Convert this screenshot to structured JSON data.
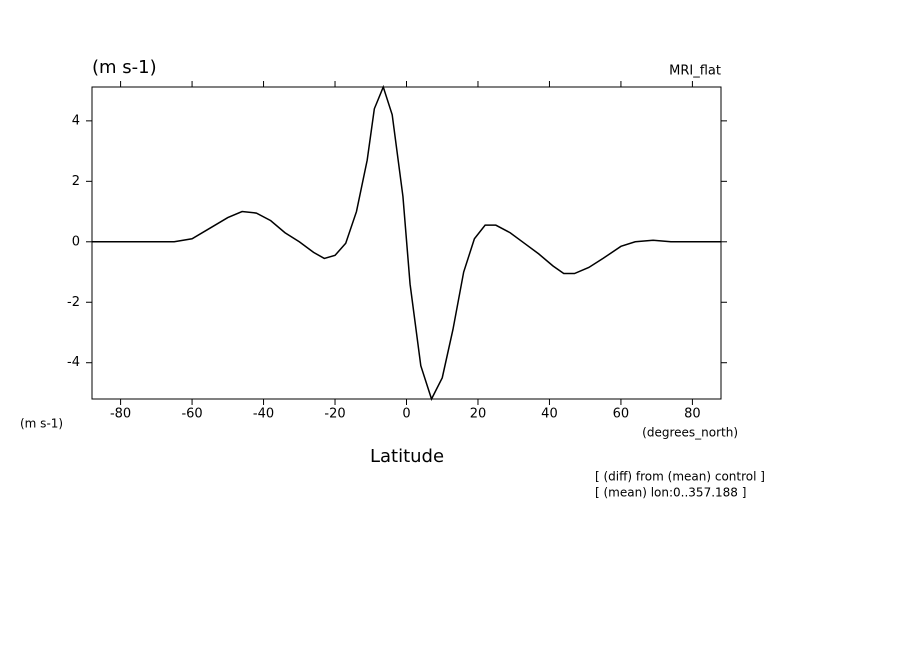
{
  "chart_data": {
    "type": "line",
    "title": "(m s-1)",
    "model": "MRI_flat",
    "y_unit": "(m s-1)",
    "x_unit": "(degrees_north)",
    "x_label": "Latitude",
    "notes": [
      "[ (diff) from (mean) control ]",
      "[ (mean) lon:0..357.188 ]"
    ],
    "color": "#000000",
    "x": [
      -88,
      -75,
      -65,
      -60,
      -55,
      -50,
      -46,
      -42,
      -38,
      -34,
      -30,
      -26,
      -23,
      -20,
      -17,
      -14,
      -11,
      -9,
      -6.5,
      -4,
      -1,
      1,
      4,
      7,
      10,
      13,
      16,
      19,
      22,
      25,
      29,
      33,
      37,
      41,
      44,
      47,
      51,
      55,
      60,
      64,
      69,
      74,
      88
    ],
    "values": [
      0,
      0,
      0,
      0.1,
      0.45,
      0.8,
      1.0,
      0.95,
      0.7,
      0.3,
      0,
      -0.35,
      -0.55,
      -0.45,
      -0.05,
      1.0,
      2.7,
      4.4,
      5.12,
      4.2,
      1.5,
      -1.4,
      -4.1,
      -5.2,
      -4.5,
      -2.9,
      -1.0,
      0.1,
      0.55,
      0.55,
      0.3,
      -0.05,
      -0.4,
      -0.8,
      -1.05,
      -1.05,
      -0.85,
      -0.55,
      -0.15,
      0,
      0.05,
      0,
      0
    ],
    "xlim": [
      -88,
      88
    ],
    "ylim": [
      -5.2,
      5.12
    ],
    "xticks": [
      -80,
      -60,
      -40,
      -20,
      0,
      20,
      40,
      60,
      80
    ],
    "yticks": [
      -4,
      -2,
      0,
      2,
      4
    ]
  }
}
